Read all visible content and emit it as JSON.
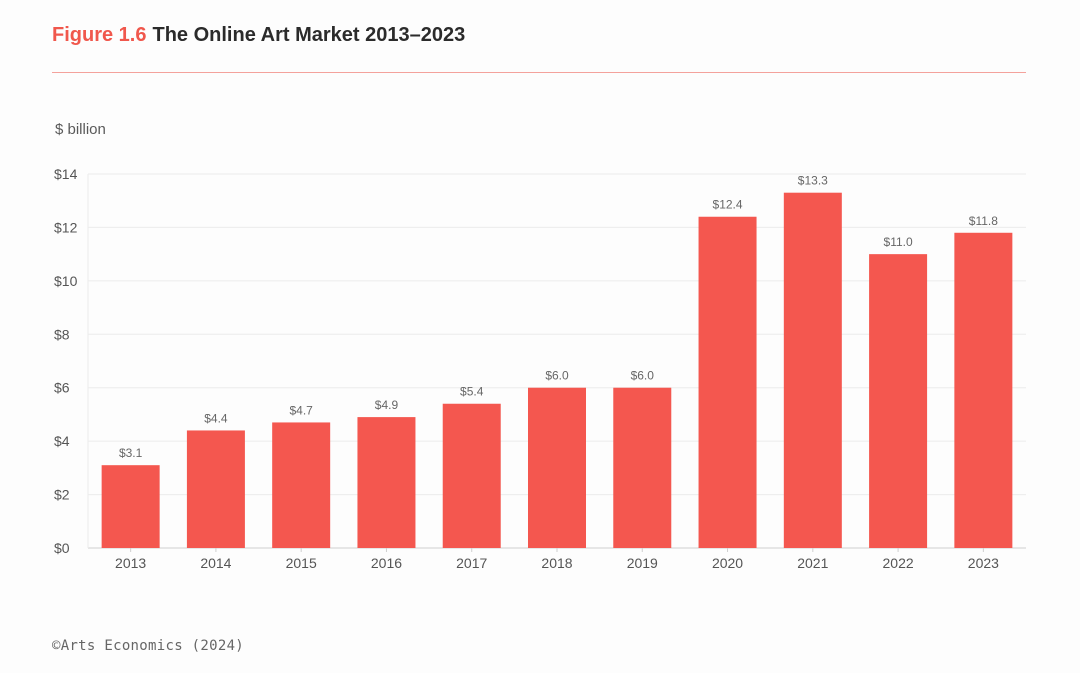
{
  "header": {
    "figure_label": "Figure 1.6",
    "title": "The Online Art Market 2013–2023"
  },
  "colors": {
    "accent": "#f0574c",
    "bar": "#f4574f",
    "rule": "#f4a29c",
    "grid": "#ececec"
  },
  "chart_data": {
    "type": "bar",
    "title": "The Online Art Market 2013–2023",
    "xlabel": "",
    "ylabel": "$ billion",
    "ylim": [
      0,
      14
    ],
    "yticks": [
      0,
      2,
      4,
      6,
      8,
      10,
      12,
      14
    ],
    "ytick_labels": [
      "$0",
      "$2",
      "$4",
      "$6",
      "$8",
      "$10",
      "$12",
      "$14"
    ],
    "grid": true,
    "categories": [
      "2013",
      "2014",
      "2015",
      "2016",
      "2017",
      "2018",
      "2019",
      "2020",
      "2021",
      "2022",
      "2023"
    ],
    "values": [
      3.1,
      4.4,
      4.7,
      4.9,
      5.4,
      6.0,
      6.0,
      12.4,
      13.3,
      11.0,
      11.8
    ],
    "value_labels": [
      "$3.1",
      "$4.4",
      "$4.7",
      "$4.9",
      "$5.4",
      "$6.0",
      "$6.0",
      "$12.4",
      "$13.3",
      "$11.0",
      "$11.8"
    ]
  },
  "footer": {
    "source": "©Arts Economics (2024)"
  }
}
